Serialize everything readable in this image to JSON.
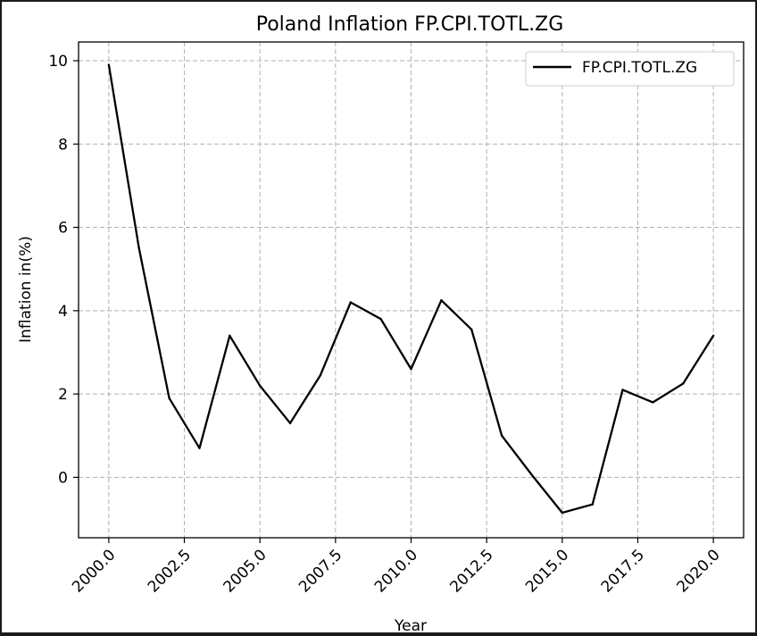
{
  "chart_data": {
    "type": "line",
    "title": "Poland Inflation FP.CPI.TOTL.ZG",
    "xlabel": "Year",
    "ylabel": "Inflation in(%)",
    "xlim": [
      1999.0,
      2021.0
    ],
    "ylim": [
      -1.45,
      10.45
    ],
    "grid": true,
    "legend_position": "top-right",
    "x_ticks": [
      2000.0,
      2002.5,
      2005.0,
      2007.5,
      2010.0,
      2012.5,
      2015.0,
      2017.5,
      2020.0
    ],
    "x_tick_labels": [
      "2000.0",
      "2002.5",
      "2005.0",
      "2007.5",
      "2010.0",
      "2012.5",
      "2015.0",
      "2017.5",
      "2020.0"
    ],
    "y_ticks": [
      0,
      2,
      4,
      6,
      8,
      10
    ],
    "y_tick_labels": [
      "0",
      "2",
      "4",
      "6",
      "8",
      "10"
    ],
    "series": [
      {
        "name": "FP.CPI.TOTL.ZG",
        "color": "#000000",
        "x": [
          2000,
          2001,
          2002,
          2003,
          2004,
          2005,
          2006,
          2007,
          2008,
          2009,
          2010,
          2011,
          2012,
          2013,
          2014,
          2015,
          2016,
          2017,
          2018,
          2019,
          2020
        ],
        "values": [
          9.9,
          5.5,
          1.9,
          0.7,
          3.4,
          2.2,
          1.3,
          2.45,
          4.2,
          3.8,
          2.6,
          4.25,
          3.55,
          1.0,
          0.05,
          -0.85,
          -0.65,
          2.1,
          1.8,
          2.25,
          3.4
        ]
      }
    ]
  }
}
